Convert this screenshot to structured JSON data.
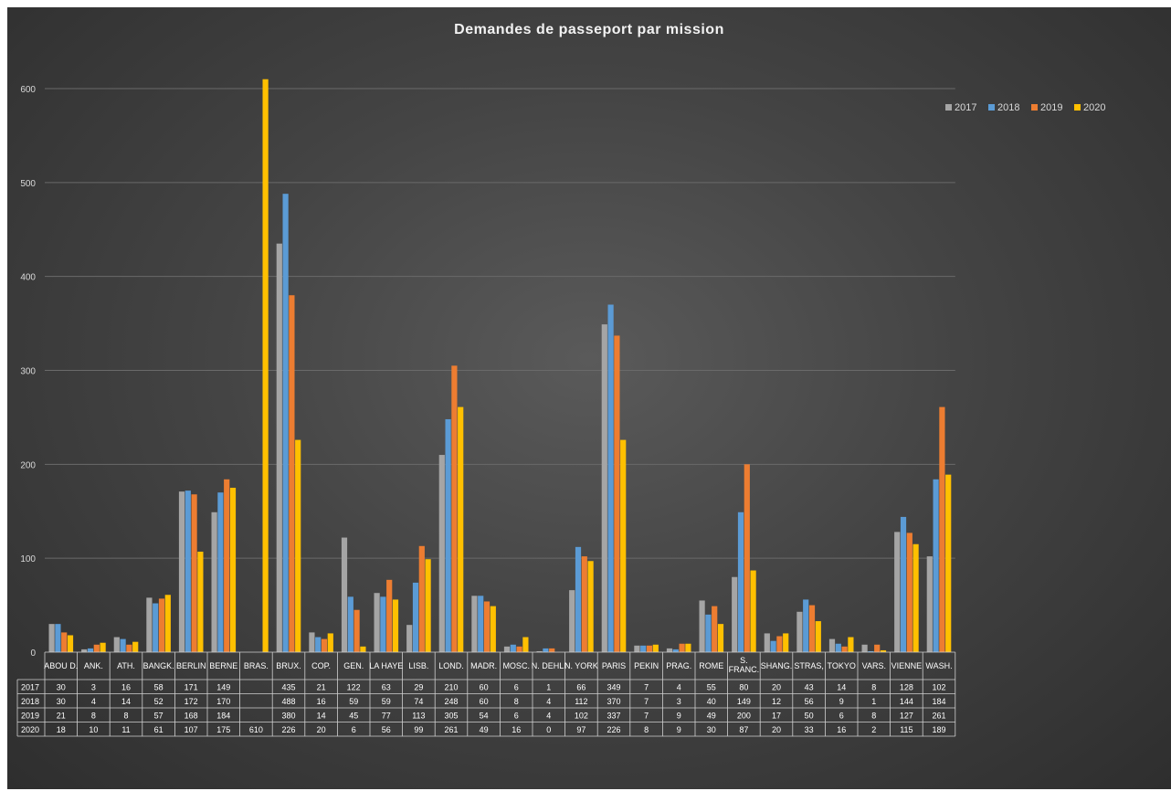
{
  "chart_data": {
    "type": "bar",
    "title": "Demandes de passeport par mission",
    "xlabel": "",
    "ylabel": "",
    "ylim": [
      0,
      600
    ],
    "yticks": [
      0,
      100,
      200,
      300,
      400,
      500,
      600
    ],
    "grid": true,
    "legend_position": "top-right",
    "categories": [
      "ABOU D.",
      "ANK.",
      "ATH.",
      "BANGK.",
      "BERLIN",
      "BERNE",
      "BRAS.",
      "BRUX.",
      "COP.",
      "GEN.",
      "LA HAYE",
      "LISB.",
      "LOND.",
      "MADR.",
      "MOSC.",
      "N. DEHLI",
      "N. YORK",
      "PARIS",
      "PEKIN",
      "PRAG.",
      "ROME",
      "S. FRANC.",
      "SHANG.",
      "STRAS,",
      "TOKYO",
      "VARS.",
      "VIENNE",
      "WASH."
    ],
    "series": [
      {
        "name": "2017",
        "color": "#a5a5a5",
        "values": [
          30,
          3,
          16,
          58,
          171,
          149,
          null,
          435,
          21,
          122,
          63,
          29,
          210,
          60,
          6,
          1,
          66,
          349,
          7,
          4,
          55,
          80,
          20,
          43,
          14,
          8,
          128,
          102
        ]
      },
      {
        "name": "2018",
        "color": "#5b9bd5",
        "values": [
          30,
          4,
          14,
          52,
          172,
          170,
          null,
          488,
          16,
          59,
          59,
          74,
          248,
          60,
          8,
          4,
          112,
          370,
          7,
          3,
          40,
          149,
          12,
          56,
          9,
          1,
          144,
          184
        ]
      },
      {
        "name": "2019",
        "color": "#ed7d31",
        "values": [
          21,
          8,
          8,
          57,
          168,
          184,
          null,
          380,
          14,
          45,
          77,
          113,
          305,
          54,
          6,
          4,
          102,
          337,
          7,
          9,
          49,
          200,
          17,
          50,
          6,
          8,
          127,
          261
        ]
      },
      {
        "name": "2020",
        "color": "#ffc000",
        "values": [
          18,
          10,
          11,
          61,
          107,
          175,
          610,
          226,
          20,
          6,
          56,
          99,
          261,
          49,
          16,
          0,
          97,
          226,
          8,
          9,
          30,
          87,
          20,
          33,
          16,
          2,
          115,
          189
        ]
      }
    ]
  }
}
